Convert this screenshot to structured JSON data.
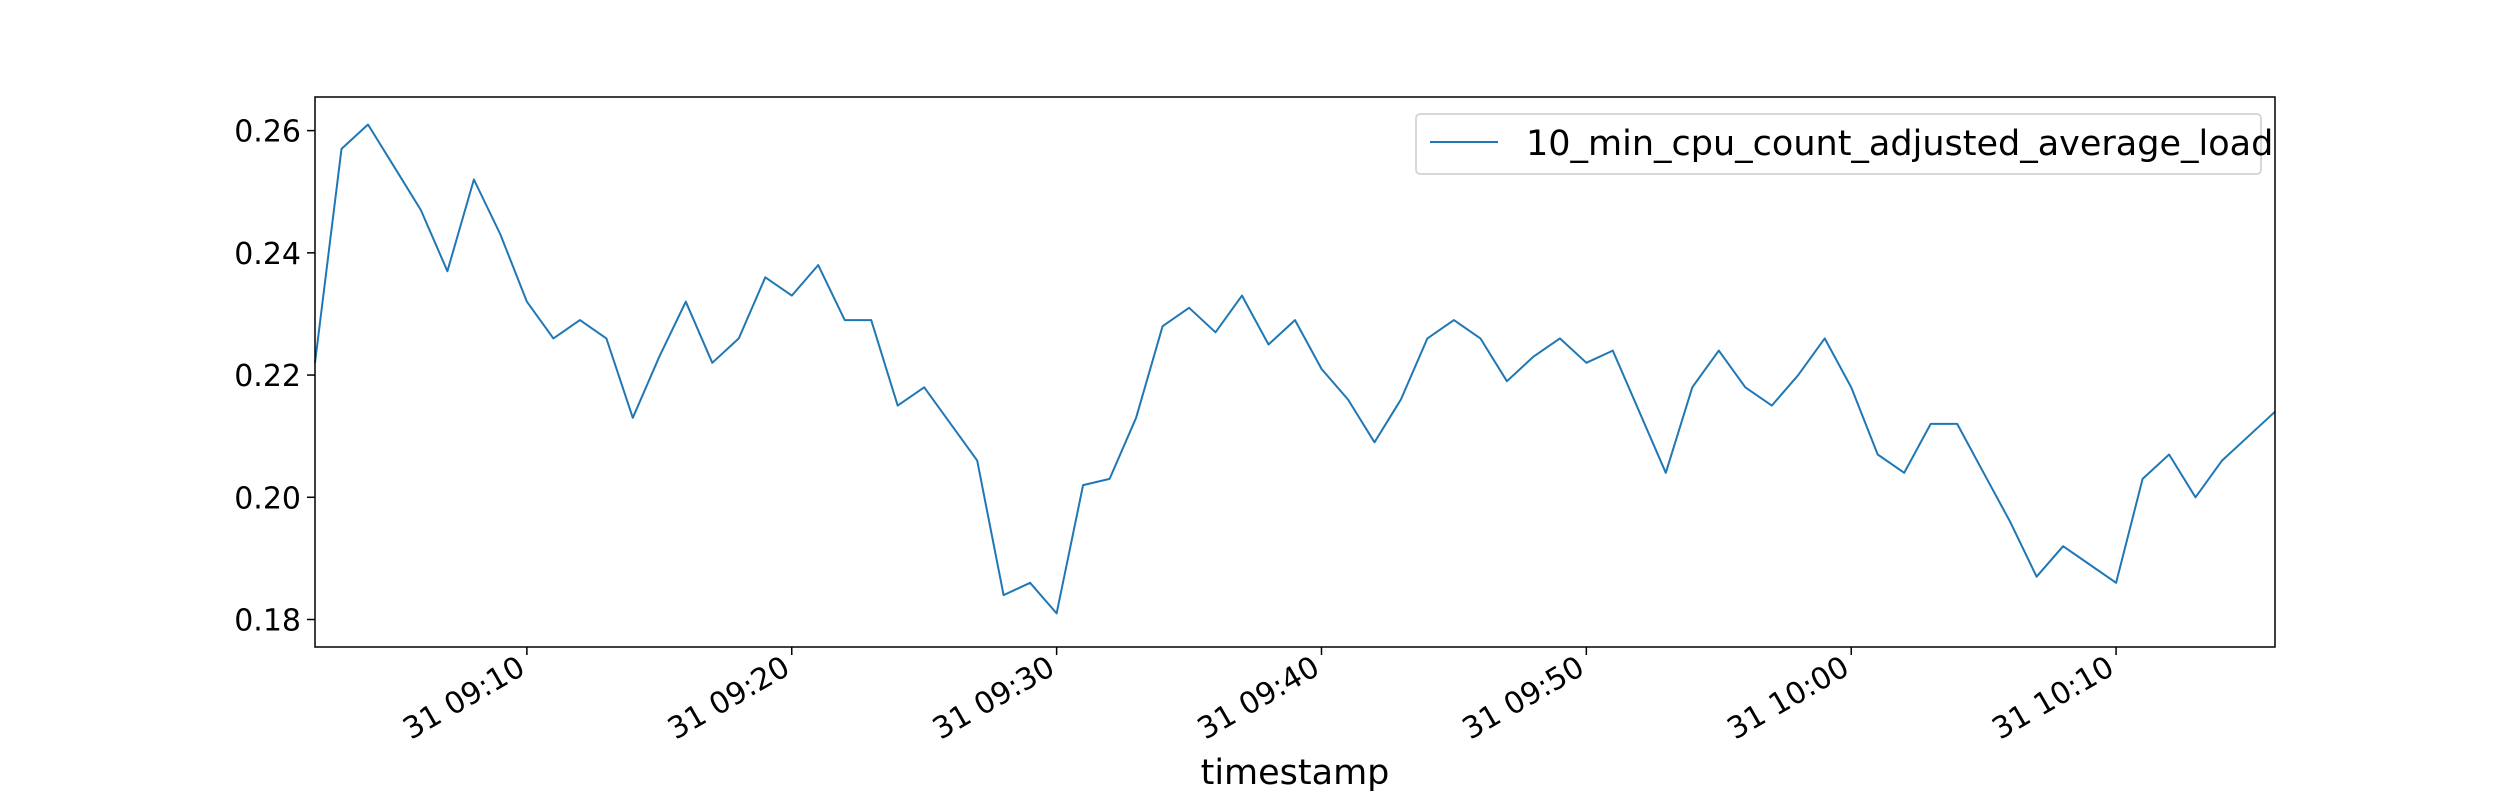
{
  "chart_data": {
    "type": "line",
    "title": "",
    "xlabel": "timestamp",
    "ylabel": "",
    "xlim": [
      "31 09:02",
      "31 10:16"
    ],
    "ylim": [
      0.1755,
      0.2655
    ],
    "grid": false,
    "legend_position": "top-right",
    "y_ticks": [
      0.18,
      0.2,
      0.22,
      0.24,
      0.26
    ],
    "y_tick_labels": [
      "0.18",
      "0.20",
      "0.22",
      "0.24",
      "0.26"
    ],
    "x_ticks": [
      "31 09:10",
      "31 09:20",
      "31 09:30",
      "31 09:40",
      "31 09:50",
      "31 10:00",
      "31 10:10"
    ],
    "x_tick_labels": [
      "31 09:10",
      "31 09:20",
      "31 09:30",
      "31 09:40",
      "31 09:50",
      "31 10:00",
      "31 10:10"
    ],
    "series": [
      {
        "name": "10_min_cpu_count_adjusted_average_load",
        "color": "#1f77b4",
        "x": [
          "31 09:02",
          "31 09:03",
          "31 09:04",
          "31 09:05",
          "31 09:06",
          "31 09:07",
          "31 09:08",
          "31 09:09",
          "31 09:10",
          "31 09:11",
          "31 09:12",
          "31 09:13",
          "31 09:14",
          "31 09:15",
          "31 09:16",
          "31 09:17",
          "31 09:18",
          "31 09:19",
          "31 09:20",
          "31 09:21",
          "31 09:22",
          "31 09:23",
          "31 09:24",
          "31 09:25",
          "31 09:26",
          "31 09:27",
          "31 09:28",
          "31 09:29",
          "31 09:30",
          "31 09:31",
          "31 09:32",
          "31 09:33",
          "31 09:34",
          "31 09:35",
          "31 09:36",
          "31 09:37",
          "31 09:38",
          "31 09:39",
          "31 09:40",
          "31 09:41",
          "31 09:42",
          "31 09:43",
          "31 09:44",
          "31 09:45",
          "31 09:46",
          "31 09:47",
          "31 09:48",
          "31 09:49",
          "31 09:50",
          "31 09:51",
          "31 09:52",
          "31 09:53",
          "31 09:54",
          "31 09:55",
          "31 09:56",
          "31 09:57",
          "31 09:58",
          "31 09:59",
          "31 10:00",
          "31 10:01",
          "31 10:02",
          "31 10:03",
          "31 10:04",
          "31 10:05",
          "31 10:06",
          "31 10:07",
          "31 10:08",
          "31 10:09",
          "31 10:10",
          "31 10:11",
          "31 10:12",
          "31 10:13",
          "31 10:14",
          "31 10:15",
          "31 10:16"
        ],
        "values": [
          0.222,
          0.257,
          0.261,
          0.254,
          0.247,
          0.237,
          0.252,
          0.243,
          0.232,
          0.226,
          0.229,
          0.226,
          0.213,
          0.223,
          0.232,
          0.222,
          0.226,
          0.236,
          0.233,
          0.238,
          0.229,
          0.229,
          0.215,
          0.218,
          0.212,
          0.206,
          0.184,
          0.186,
          0.181,
          0.202,
          0.203,
          0.213,
          0.228,
          0.231,
          0.227,
          0.233,
          0.225,
          0.229,
          0.221,
          0.216,
          0.209,
          0.216,
          0.226,
          0.229,
          0.226,
          0.219,
          0.223,
          0.226,
          0.222,
          0.224,
          0.214,
          0.204,
          0.218,
          0.224,
          0.218,
          0.215,
          0.22,
          0.226,
          0.218,
          0.207,
          0.204,
          0.212,
          0.212,
          0.204,
          0.196,
          0.187,
          0.192,
          0.189,
          0.186,
          0.203,
          0.207,
          0.2,
          0.206,
          0.21,
          0.214
        ]
      }
    ]
  }
}
